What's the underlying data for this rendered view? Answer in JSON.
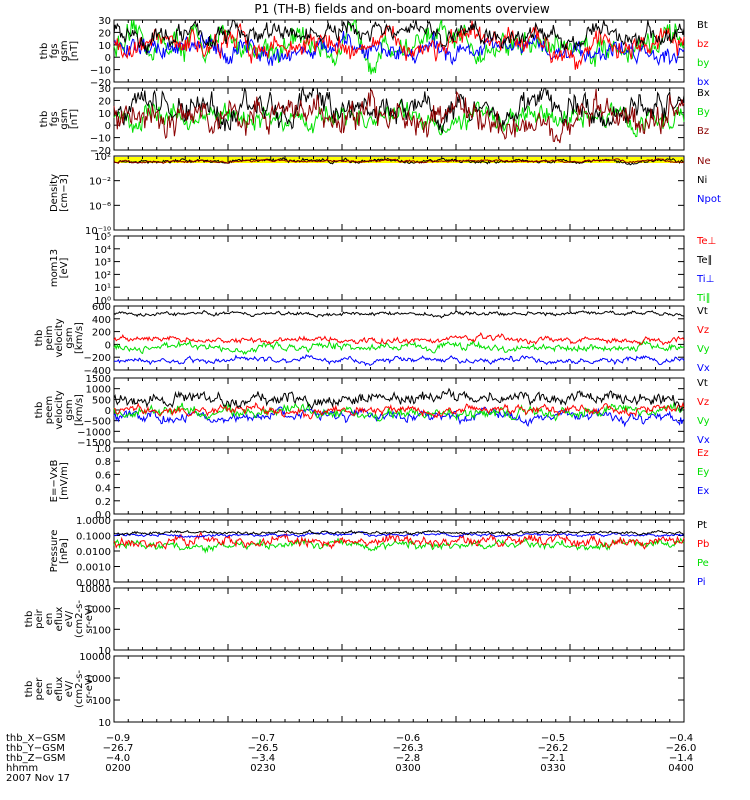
{
  "title": "P1 (TH-B) fields and on-board moments overview",
  "colors": {
    "black": "#000000",
    "red": "#ff0000",
    "green": "#00e000",
    "blue": "#0000ff",
    "darkred": "#8b0000",
    "yellow": "#ffff00"
  },
  "panels": [
    {
      "id": "fgs",
      "ylabel": [
        "thb",
        "fgs",
        "gsm",
        "[nT]"
      ],
      "ticks": [
        "30",
        "20",
        "10",
        "0",
        "−10",
        "−20"
      ],
      "ylim": [
        -20,
        30
      ],
      "type": "line",
      "legend": [
        {
          "label": "Bt",
          "color": "black"
        },
        {
          "label": "bz",
          "color": "red"
        },
        {
          "label": "by",
          "color": "green"
        },
        {
          "label": "bx",
          "color": "blue"
        }
      ]
    },
    {
      "id": "fgh",
      "ylabel": [
        "thb",
        "fgs",
        "gsm",
        "[nT]"
      ],
      "ticks": [
        "30",
        "20",
        "10",
        "0",
        "−10",
        "−20"
      ],
      "ylim": [
        -20,
        30
      ],
      "type": "line",
      "legend": [
        {
          "label": "Bx",
          "color": "black"
        },
        {
          "label": "By",
          "color": "green"
        },
        {
          "label": "Bz",
          "color": "darkred"
        }
      ],
      "bar": "yellow"
    },
    {
      "id": "density",
      "ylabel": [
        "Density",
        "[cm−3]"
      ],
      "ticks": [
        "10²",
        "10⁻²",
        "10⁻⁶",
        "10⁻¹⁰"
      ],
      "type": "log",
      "legend": [
        {
          "label": "Ne",
          "color": "darkred"
        },
        {
          "label": "Ni",
          "color": "black"
        },
        {
          "label": "Npot",
          "color": "blue"
        }
      ]
    },
    {
      "id": "temp",
      "ylabel": [
        "mom13",
        "[eV]"
      ],
      "ticks": [
        "10⁵",
        "10⁴",
        "10³",
        "10²",
        "10¹",
        "10⁰"
      ],
      "type": "log",
      "legend": [
        {
          "label": "Te⊥",
          "color": "red"
        },
        {
          "label": "Te∥",
          "color": "black"
        },
        {
          "label": "Ti⊥",
          "color": "blue"
        },
        {
          "label": "Ti∥",
          "color": "green"
        }
      ]
    },
    {
      "id": "peim",
      "ylabel": [
        "thb",
        "peim",
        "velocity",
        "gsm",
        "[km/s]"
      ],
      "ticks": [
        "600",
        "400",
        "200",
        "0",
        "−200",
        "−400"
      ],
      "ylim": [
        -500,
        600
      ],
      "type": "line",
      "legend": [
        {
          "label": "Vt",
          "color": "black"
        },
        {
          "label": "Vz",
          "color": "red"
        },
        {
          "label": "Vy",
          "color": "green"
        },
        {
          "label": "Vx",
          "color": "blue"
        }
      ]
    },
    {
      "id": "peem",
      "ylabel": [
        "thb",
        "peem",
        "velocity",
        "gsm",
        "[km/s]"
      ],
      "ticks": [
        "1500",
        "1000",
        "500",
        "0",
        "−500",
        "−1000",
        "−1500"
      ],
      "ylim": [
        -1500,
        1500
      ],
      "type": "line",
      "legend": [
        {
          "label": "Vt",
          "color": "black"
        },
        {
          "label": "Vz",
          "color": "red"
        },
        {
          "label": "Vy",
          "color": "green"
        },
        {
          "label": "Vx",
          "color": "blue"
        }
      ]
    },
    {
      "id": "efield",
      "ylabel": [
        "E=−VxB",
        "[mV/m]"
      ],
      "ticks": [
        "1.0",
        "0.8",
        "0.6",
        "0.4",
        "0.2",
        "0.0"
      ],
      "ylim": [
        0,
        1
      ],
      "type": "empty",
      "legend": [
        {
          "label": "Ez",
          "color": "red"
        },
        {
          "label": "Ey",
          "color": "green"
        },
        {
          "label": "Ex",
          "color": "blue"
        }
      ]
    },
    {
      "id": "pressure",
      "ylabel": [
        "Pressure",
        "[nPa]"
      ],
      "ticks": [
        "1.0000",
        "0.1000",
        "0.0100",
        "0.0010",
        "0.0001"
      ],
      "type": "log",
      "legend": [
        {
          "label": "Pt",
          "color": "black"
        },
        {
          "label": "Pb",
          "color": "red"
        },
        {
          "label": "Pe",
          "color": "green"
        },
        {
          "label": "Pi",
          "color": "blue"
        }
      ]
    },
    {
      "id": "peir",
      "ylabel": [
        "thb",
        "peir",
        "en",
        "eflux",
        "eV/",
        "(cm2-s-",
        "sr-eV)"
      ],
      "ticks": [
        "10000",
        "1000",
        "100",
        "10"
      ],
      "type": "empty",
      "legend": []
    },
    {
      "id": "peer",
      "ylabel": [
        "thb",
        "peer",
        "en",
        "eflux",
        "eV/",
        "(cm2-s-",
        "sr-eV)"
      ],
      "ticks": [
        "10000",
        "1000",
        "100",
        "10"
      ],
      "type": "empty",
      "legend": []
    }
  ],
  "xaxis": {
    "rows": [
      {
        "label": "thb_X−GSM",
        "values": [
          "−0.9",
          "−0.7",
          "−0.6",
          "−0.5",
          "−0.4"
        ]
      },
      {
        "label": "thb_Y−GSM",
        "values": [
          "−26.7",
          "−26.5",
          "−26.3",
          "−26.2",
          "−26.0"
        ]
      },
      {
        "label": "thb_Z−GSM",
        "values": [
          "−4.0",
          "−3.4",
          "−2.8",
          "−2.1",
          "−1.4"
        ]
      },
      {
        "label": "hhmm",
        "values": [
          "0200",
          "0230",
          "0300",
          "0330",
          "0400"
        ]
      }
    ],
    "date": "2007 Nov 17"
  },
  "chart_data": {
    "type": "line",
    "title": "P1 (TH-B) fields and on-board moments overview",
    "x": {
      "label": "hhmm",
      "ticks": [
        "0200",
        "0230",
        "0300",
        "0330",
        "0400"
      ]
    },
    "series": [
      {
        "panel": "fgs",
        "name": "Bt",
        "color": "#000000",
        "approx": "10–20 nT, fluctuating"
      },
      {
        "panel": "fgs",
        "name": "bz",
        "color": "#ff0000",
        "approx": "~5–10 nT"
      },
      {
        "panel": "fgs",
        "name": "by",
        "color": "#00e000",
        "approx": "~0 nT, noisy"
      },
      {
        "panel": "fgs",
        "name": "bx",
        "color": "#0000ff",
        "approx": "~5 nT"
      },
      {
        "panel": "peim",
        "name": "Vt",
        "color": "#000000",
        "approx": "~450 km/s"
      },
      {
        "panel": "peim",
        "name": "Vx",
        "color": "#0000ff",
        "approx": "~−300 km/s"
      },
      {
        "panel": "pressure",
        "name": "Pt",
        "color": "#000000",
        "approx": "~0.2 nPa"
      }
    ]
  }
}
